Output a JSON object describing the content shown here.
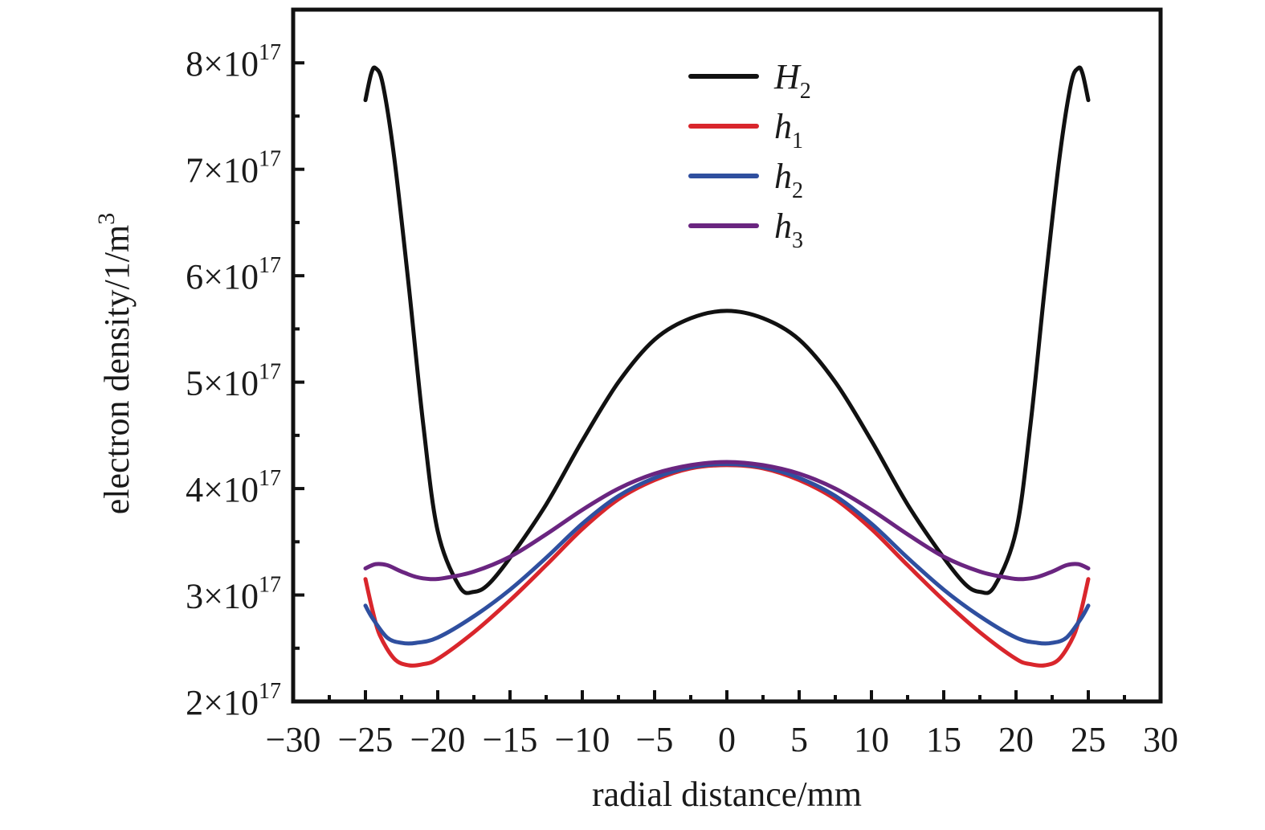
{
  "chart_data": {
    "type": "line",
    "xlabel": "radial distance/mm",
    "ylabel": "electron density/1/m",
    "ylabel_superscript": "3",
    "xlim": [
      -30,
      30
    ],
    "ylim": [
      2e+17,
      8.5e+17
    ],
    "x_ticks": [
      -30,
      -25,
      -20,
      -15,
      -10,
      -5,
      0,
      5,
      10,
      15,
      20,
      25,
      30
    ],
    "x_tick_labels": [
      "−30",
      "−25",
      "−20",
      "−15",
      "−10",
      "−5",
      "0",
      "5",
      "10",
      "15",
      "20",
      "25",
      "30"
    ],
    "y_ticks": [
      2e+17,
      3e+17,
      4e+17,
      5e+17,
      6e+17,
      7e+17,
      8e+17
    ],
    "y_tick_labels": [
      {
        "mantissa": "2×10",
        "exponent": "17"
      },
      {
        "mantissa": "3×10",
        "exponent": "17"
      },
      {
        "mantissa": "4×10",
        "exponent": "17"
      },
      {
        "mantissa": "5×10",
        "exponent": "17"
      },
      {
        "mantissa": "6×10",
        "exponent": "17"
      },
      {
        "mantissa": "7×10",
        "exponent": "17"
      },
      {
        "mantissa": "8×10",
        "exponent": "17"
      }
    ],
    "grid": false,
    "legend_position": "top-center",
    "series": [
      {
        "name": "H",
        "subscript": "2",
        "color": "#111111",
        "x": [
          0,
          2.5,
          5,
          7.5,
          10,
          12.5,
          15,
          16.5,
          17.5,
          18.5,
          20,
          21,
          22,
          23,
          23.8,
          24.3,
          24.6,
          25
        ],
        "y": [
          5.67e+17,
          5.6e+17,
          5.4e+17,
          5e+17,
          4.45e+17,
          3.85e+17,
          3.35e+17,
          3.1e+17,
          3.03e+17,
          3.08e+17,
          3.6e+17,
          4.6e+17,
          5.9e+17,
          7.1e+17,
          7.8e+17,
          7.95e+17,
          7.9e+17,
          7.65e+17
        ]
      },
      {
        "name": "h",
        "subscript": "1",
        "color": "#d9262c",
        "x": [
          0,
          2.5,
          5,
          7.5,
          10,
          12.5,
          15,
          17.5,
          20,
          21,
          22,
          23,
          24,
          24.5,
          25
        ],
        "y": [
          4.22e+17,
          4.19e+17,
          4.08e+17,
          3.9e+17,
          3.62e+17,
          3.28e+17,
          2.95e+17,
          2.65e+17,
          2.4e+17,
          2.35e+17,
          2.34e+17,
          2.4e+17,
          2.62e+17,
          2.85e+17,
          3.15e+17
        ]
      },
      {
        "name": "h",
        "subscript": "2",
        "color": "#2f4f9f",
        "x": [
          0,
          2.5,
          5,
          7.5,
          10,
          12.5,
          15,
          17.5,
          20,
          21.5,
          22.5,
          23.5,
          24.5,
          25
        ],
        "y": [
          4.23e+17,
          4.2e+17,
          4.1e+17,
          3.93e+17,
          3.67e+17,
          3.35e+17,
          3.05e+17,
          2.8e+17,
          2.6e+17,
          2.55e+17,
          2.55e+17,
          2.6e+17,
          2.78e+17,
          2.9e+17
        ]
      },
      {
        "name": "h",
        "subscript": "3",
        "color": "#6a2580",
        "x": [
          0,
          2.5,
          5,
          7.5,
          10,
          12.5,
          15,
          17.5,
          19.5,
          20.5,
          21.5,
          22.5,
          23.5,
          24.3,
          25
        ],
        "y": [
          4.25e+17,
          4.22e+17,
          4.14e+17,
          4e+17,
          3.8e+17,
          3.57e+17,
          3.36e+17,
          3.22e+17,
          3.16e+17,
          3.15e+17,
          3.17e+17,
          3.22e+17,
          3.28e+17,
          3.29e+17,
          3.25e+17
        ]
      }
    ]
  }
}
